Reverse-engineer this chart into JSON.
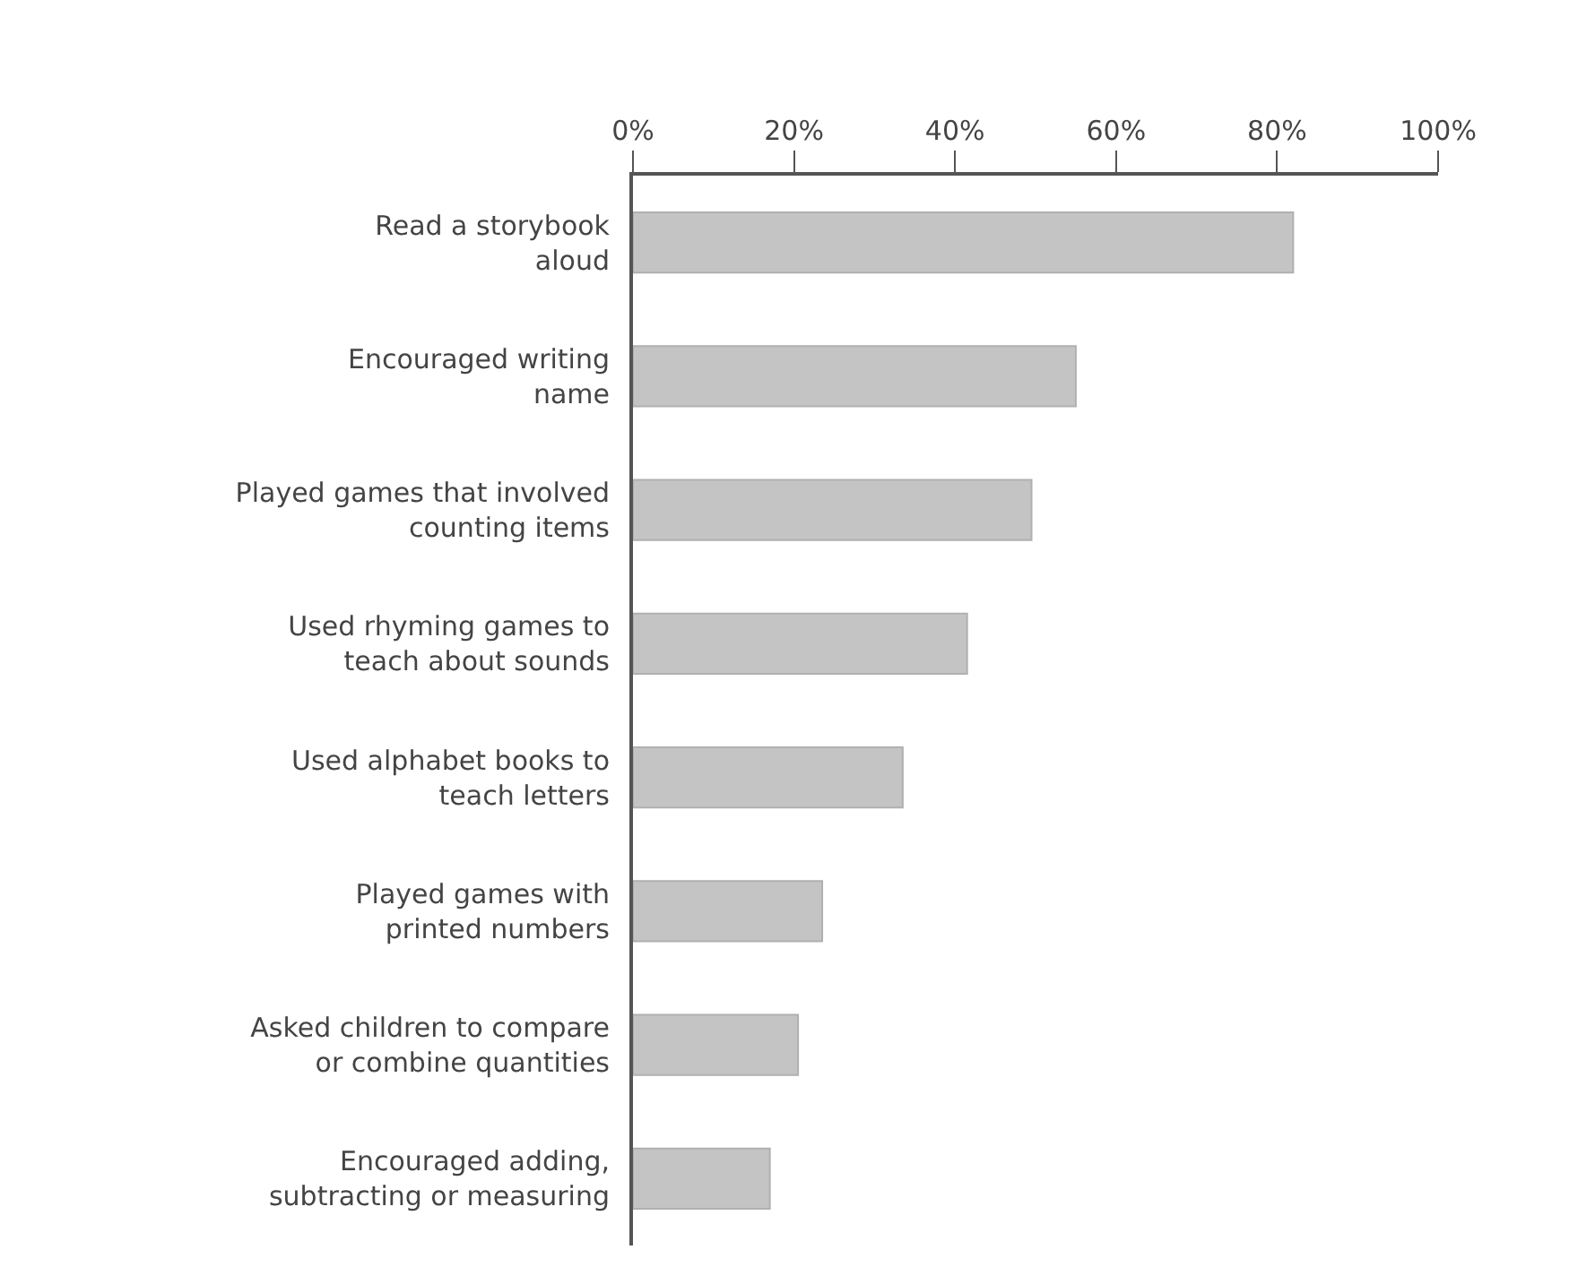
{
  "chart_data": {
    "type": "bar",
    "orientation": "horizontal",
    "categories": [
      "Read a storybook\naloud",
      "Encouraged writing\nname",
      "Played games that involved\ncounting items",
      "Used rhyming games to\nteach about sounds",
      "Used alphabet books to\nteach letters",
      "Played games with\nprinted numbers",
      "Asked children to compare\nor combine quantities",
      "Encouraged adding,\nsubtracting or measuring"
    ],
    "values": [
      82,
      55,
      49.5,
      41.5,
      33.5,
      23.5,
      20.5,
      17
    ],
    "color": "#c4c4c4",
    "xlim": [
      0,
      100
    ],
    "xticks": [
      {
        "value": 0,
        "label": "0%"
      },
      {
        "value": 20,
        "label": "20%"
      },
      {
        "value": 40,
        "label": "40%"
      },
      {
        "value": 60,
        "label": "60%"
      },
      {
        "value": 80,
        "label": "80%"
      },
      {
        "value": 100,
        "label": "100%"
      }
    ]
  }
}
